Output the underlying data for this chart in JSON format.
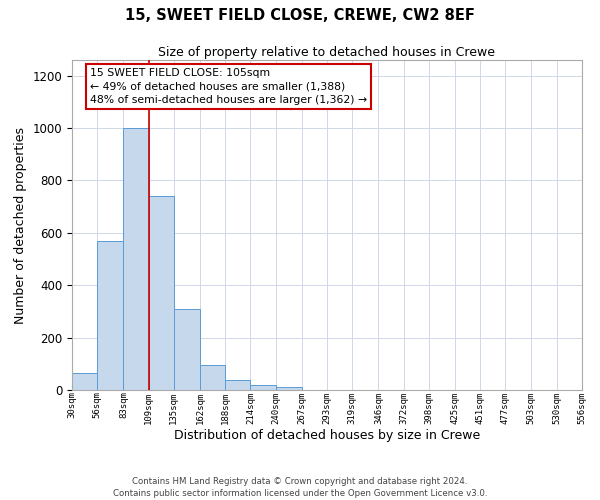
{
  "title": "15, SWEET FIELD CLOSE, CREWE, CW2 8EF",
  "subtitle": "Size of property relative to detached houses in Crewe",
  "xlabel": "Distribution of detached houses by size in Crewe",
  "ylabel": "Number of detached properties",
  "bar_color": "#c5d8ec",
  "bar_edge_color": "#5b9bd5",
  "background_color": "#ffffff",
  "grid_color": "#d0d8e8",
  "vline_x": 109,
  "vline_color": "#cc0000",
  "bin_edges": [
    30,
    56,
    83,
    109,
    135,
    162,
    188,
    214,
    240,
    267,
    293,
    319,
    346,
    372,
    398,
    425,
    451,
    477,
    503,
    530,
    556
  ],
  "bar_heights": [
    65,
    570,
    1000,
    740,
    310,
    95,
    40,
    20,
    10,
    0,
    0,
    0,
    0,
    0,
    0,
    0,
    0,
    0,
    0,
    0
  ],
  "annotation_line1": "15 SWEET FIELD CLOSE: 105sqm",
  "annotation_line2": "← 49% of detached houses are smaller (1,388)",
  "annotation_line3": "48% of semi-detached houses are larger (1,362) →",
  "ylim": [
    0,
    1260
  ],
  "yticks": [
    0,
    200,
    400,
    600,
    800,
    1000,
    1200
  ],
  "footer_line1": "Contains HM Land Registry data © Crown copyright and database right 2024.",
  "footer_line2": "Contains public sector information licensed under the Open Government Licence v3.0.",
  "tick_labels": [
    "30sqm",
    "56sqm",
    "83sqm",
    "109sqm",
    "135sqm",
    "162sqm",
    "188sqm",
    "214sqm",
    "240sqm",
    "267sqm",
    "293sqm",
    "319sqm",
    "346sqm",
    "372sqm",
    "398sqm",
    "425sqm",
    "451sqm",
    "477sqm",
    "503sqm",
    "530sqm",
    "556sqm"
  ]
}
